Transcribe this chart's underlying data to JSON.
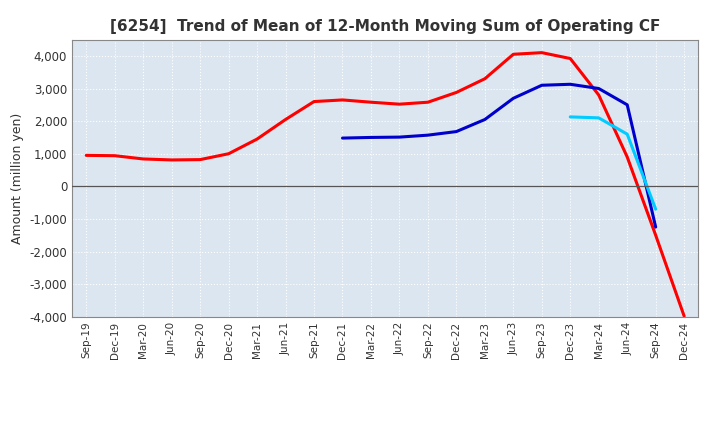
{
  "title": "[6254]  Trend of Mean of 12-Month Moving Sum of Operating CF",
  "ylabel": "Amount (million yen)",
  "background_color": "#ffffff",
  "plot_bg_color": "#dce6f0",
  "grid_color": "#ffffff",
  "ylim": [
    -4000,
    4500
  ],
  "yticks": [
    -4000,
    -3000,
    -2000,
    -1000,
    0,
    1000,
    2000,
    3000,
    4000
  ],
  "x_labels": [
    "Sep-19",
    "Dec-19",
    "Mar-20",
    "Jun-20",
    "Sep-20",
    "Dec-20",
    "Mar-21",
    "Jun-21",
    "Sep-21",
    "Dec-21",
    "Mar-22",
    "Jun-22",
    "Sep-22",
    "Dec-22",
    "Mar-23",
    "Jun-23",
    "Sep-23",
    "Dec-23",
    "Mar-24",
    "Jun-24",
    "Sep-24",
    "Dec-24"
  ],
  "series": {
    "3 Years": {
      "color": "#ff0000",
      "data": [
        950,
        940,
        840,
        810,
        820,
        1000,
        1450,
        2050,
        2600,
        2650,
        2580,
        2520,
        2580,
        2880,
        3300,
        4050,
        4100,
        3920,
        2800,
        900,
        -1500,
        -3980
      ]
    },
    "5 Years": {
      "color": "#0000cc",
      "data": [
        null,
        null,
        null,
        null,
        null,
        null,
        null,
        null,
        null,
        1480,
        1500,
        1510,
        1570,
        1680,
        2050,
        2700,
        3100,
        3130,
        3000,
        2500,
        -1250,
        null
      ]
    },
    "7 Years": {
      "color": "#00ccff",
      "data": [
        null,
        null,
        null,
        null,
        null,
        null,
        null,
        null,
        null,
        null,
        null,
        null,
        null,
        null,
        null,
        null,
        null,
        2130,
        2100,
        1600,
        -700,
        null
      ]
    },
    "10 Years": {
      "color": "#008800",
      "data": [
        null,
        null,
        null,
        null,
        null,
        null,
        null,
        null,
        null,
        null,
        null,
        null,
        null,
        null,
        null,
        null,
        null,
        null,
        null,
        null,
        null,
        null
      ]
    }
  }
}
